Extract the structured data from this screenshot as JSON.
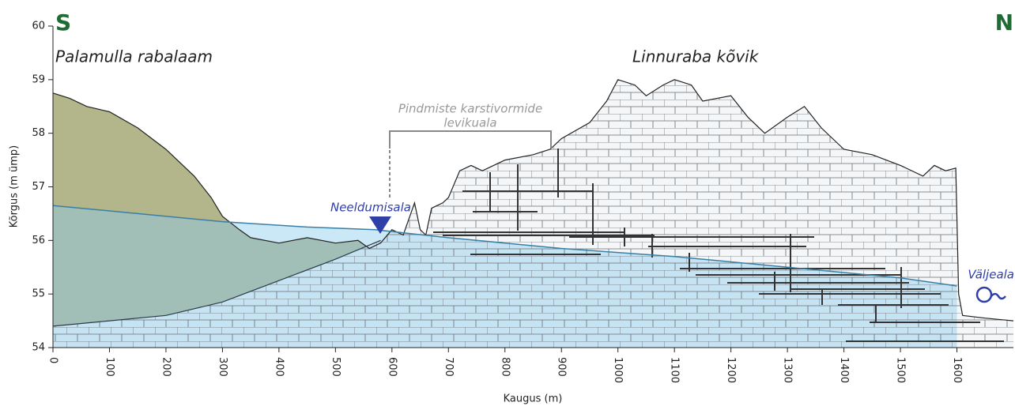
{
  "chart_data": {
    "type": "cross-section",
    "x_label": "Kaugus (m)",
    "y_label": "Kõrgus (m ümp)",
    "xlim": [
      0,
      1700
    ],
    "ylim": [
      54,
      60
    ],
    "xticks": [
      0,
      100,
      200,
      300,
      400,
      500,
      600,
      700,
      800,
      900,
      1000,
      1100,
      1200,
      1300,
      1400,
      1500,
      1600
    ],
    "yticks": [
      54,
      55,
      56,
      57,
      58,
      59,
      60
    ],
    "annotations": [
      "S",
      "N",
      "Palamulla rabalaam",
      "Linnuraba kõvik",
      "Pindmiste karstivormide",
      "levikuala",
      "Neeldumisala",
      "Väljeala"
    ],
    "series": [
      {
        "color": "#222222",
        "x": [
          0,
          30,
          60,
          100,
          150,
          200,
          250,
          280,
          300,
          330,
          350,
          400,
          450,
          500,
          540,
          560,
          580,
          600,
          620,
          640,
          650,
          660,
          670,
          690,
          700,
          720,
          740,
          760,
          800,
          850,
          880,
          900,
          950,
          980,
          1000,
          1030,
          1050,
          1080,
          1100,
          1130,
          1150,
          1200,
          1230,
          1260,
          1300,
          1330,
          1360,
          1400,
          1450,
          1500,
          1540,
          1560,
          1580,
          1598,
          1603,
          1610,
          1650,
          1700
        ],
        "values": [
          58.75,
          58.65,
          58.5,
          58.4,
          58.1,
          57.7,
          57.2,
          56.8,
          56.45,
          56.2,
          56.05,
          55.95,
          56.05,
          55.95,
          56.0,
          55.85,
          55.95,
          56.2,
          56.1,
          56.7,
          56.2,
          56.1,
          56.6,
          56.7,
          56.8,
          57.3,
          57.4,
          57.3,
          57.5,
          57.6,
          57.7,
          57.9,
          58.2,
          58.6,
          59.0,
          58.9,
          58.7,
          58.9,
          59.0,
          58.9,
          58.6,
          58.7,
          58.3,
          58.0,
          58.3,
          58.5,
          58.1,
          57.7,
          57.6,
          57.4,
          57.2,
          57.4,
          57.3,
          57.35,
          55.0,
          54.6,
          54.55,
          54.5
        ]
      },
      {
        "color": "#3a7fa6",
        "x": [
          0,
          150,
          300,
          450,
          570,
          700,
          900,
          1100,
          1300,
          1500,
          1600
        ],
        "values": [
          56.65,
          56.5,
          56.35,
          56.25,
          56.2,
          56.05,
          55.85,
          55.7,
          55.5,
          55.3,
          55.15
        ]
      },
      {
        "color": "#2a3b4a",
        "x": [
          0,
          100,
          200,
          300,
          400,
          500,
          580
        ],
        "values": [
          54.4,
          54.5,
          54.6,
          54.85,
          55.25,
          55.65,
          56.0
        ]
      }
    ]
  }
}
